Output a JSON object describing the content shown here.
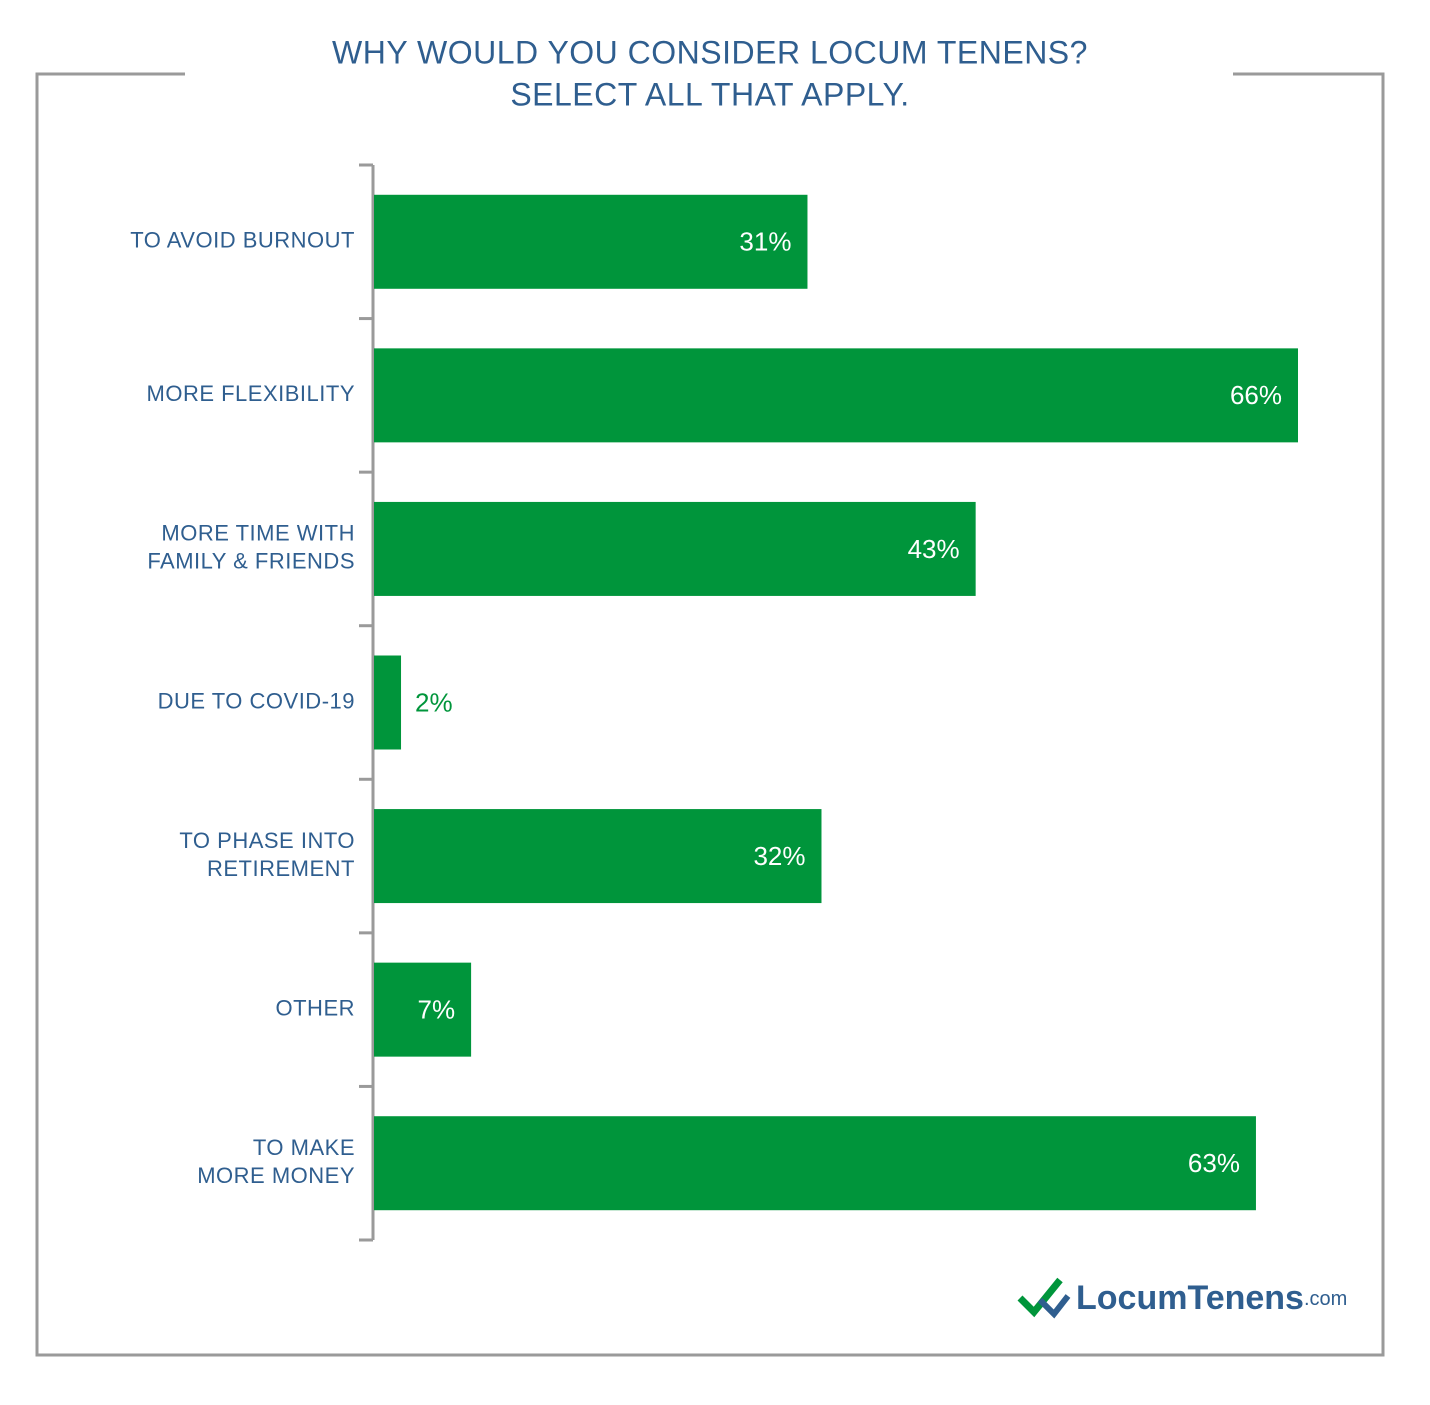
{
  "chart_data": {
    "type": "hbar",
    "title": [
      "WHY WOULD YOU CONSIDER LOCUM TENENS?",
      "SELECT ALL THAT APPLY."
    ],
    "categories": [
      [
        "TO AVOID BURNOUT"
      ],
      [
        "MORE FLEXIBILITY"
      ],
      [
        "MORE TIME WITH",
        "FAMILY & FRIENDS"
      ],
      [
        "DUE TO COVID-19"
      ],
      [
        "TO PHASE INTO",
        "RETIREMENT"
      ],
      [
        "OTHER"
      ],
      [
        "TO MAKE",
        "MORE MONEY"
      ]
    ],
    "values": [
      31,
      66,
      43,
      2,
      32,
      7,
      63
    ],
    "value_labels": [
      "31%",
      "66%",
      "43%",
      "2%",
      "32%",
      "7%",
      "63%"
    ],
    "color": "#00953b"
  },
  "logo": {
    "name": "LocumTenens",
    "suffix": ".com"
  }
}
